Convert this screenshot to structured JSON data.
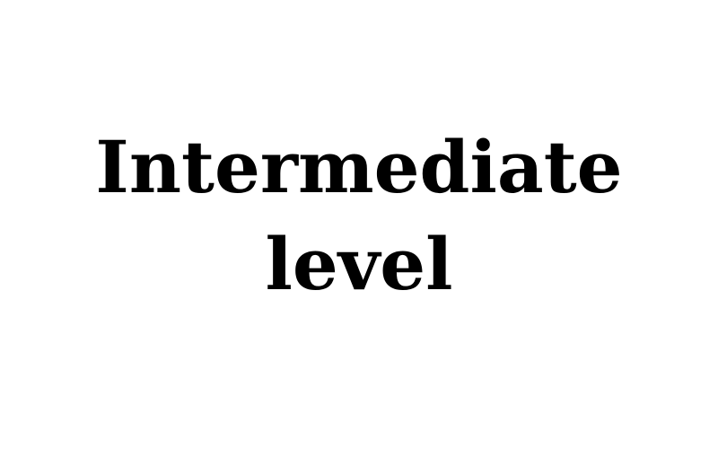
{
  "title": {
    "line_1": "Intermediate",
    "line_2": "level"
  },
  "colors": {
    "background": "#ffffff",
    "text": "#000000"
  }
}
